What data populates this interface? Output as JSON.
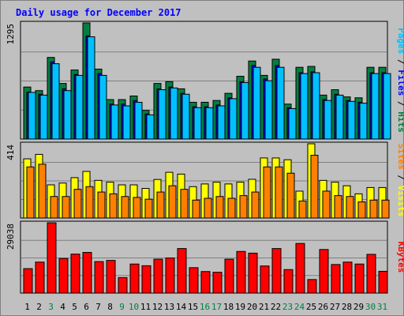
{
  "chart_data": {
    "type": "bar",
    "title": "Daily usage for December 2017",
    "categories": [
      "1",
      "2",
      "3",
      "4",
      "5",
      "6",
      "7",
      "8",
      "9",
      "10",
      "11",
      "12",
      "13",
      "14",
      "15",
      "16",
      "17",
      "18",
      "19",
      "20",
      "21",
      "22",
      "23",
      "24",
      "25",
      "26",
      "27",
      "28",
      "29",
      "30",
      "31"
    ],
    "weekend_days": [
      "3",
      "9",
      "10",
      "16",
      "17",
      "23",
      "24",
      "30",
      "31"
    ],
    "grid": true,
    "panels": [
      {
        "id": "hits-files-pages",
        "ylim": [
          0,
          1295
        ],
        "max_label": "1295",
        "axis_label": [
          {
            "text": "Pages",
            "color": "#00c0ff"
          },
          {
            "text": " / ",
            "color": "#000000"
          },
          {
            "text": "Files",
            "color": "#0000ff"
          },
          {
            "text": " / ",
            "color": "#000000"
          },
          {
            "text": "Hits",
            "color": "#008040"
          }
        ],
        "series": [
          {
            "name": "Hits",
            "color": "#008040",
            "values": [
              580,
              540,
              910,
              620,
              770,
              1295,
              780,
              440,
              440,
              480,
              320,
              620,
              640,
              560,
              410,
              410,
              430,
              510,
              700,
              870,
              710,
              890,
              390,
              800,
              810,
              490,
              550,
              470,
              460,
              800,
              800
            ]
          },
          {
            "name": "Files",
            "color": "#0000ff",
            "values": [
              525,
              500,
              860,
              560,
              720,
              1150,
              730,
              390,
              390,
              430,
              280,
              560,
              580,
              510,
              360,
              360,
              380,
              460,
              640,
              820,
              670,
              820,
              350,
              740,
              750,
              440,
              500,
              430,
              410,
              740,
              740
            ]
          },
          {
            "name": "Pages",
            "color": "#00c0ff",
            "values": [
              520,
              490,
              840,
              540,
              710,
              1140,
              710,
              380,
              370,
              410,
              270,
              550,
              570,
              500,
              350,
              350,
              370,
              450,
              630,
              800,
              650,
              800,
              340,
              730,
              740,
              430,
              490,
              420,
              400,
              730,
              730
            ]
          }
        ]
      },
      {
        "id": "visits-sites",
        "ylim": [
          0,
          414
        ],
        "max_label": "414",
        "axis_label": [
          {
            "text": "Sites",
            "color": "#ff8000"
          },
          {
            "text": " / ",
            "color": "#000000"
          },
          {
            "text": "Visits",
            "color": "#ffff00"
          }
        ],
        "series": [
          {
            "name": "Visits",
            "color": "#ffff00",
            "values": [
              330,
              355,
              185,
              195,
              225,
              260,
              210,
              200,
              185,
              185,
              165,
              215,
              255,
              245,
              175,
              190,
              200,
              190,
              200,
              216,
              335,
              335,
              325,
              150,
              414,
              210,
              200,
              180,
              135,
              170,
              170
            ]
          },
          {
            "name": "Sites",
            "color": "#ff8000",
            "values": [
              285,
              300,
              120,
              120,
              160,
              175,
              145,
              135,
              120,
              115,
              105,
              145,
              180,
              160,
              100,
              110,
              120,
              110,
              125,
              145,
              285,
              285,
              250,
              95,
              350,
              150,
              125,
              120,
              90,
              100,
              100
            ]
          }
        ]
      },
      {
        "id": "kbytes",
        "ylim": [
          0,
          29038
        ],
        "max_label": "29038",
        "axis_label": [
          {
            "text": "KBytes",
            "color": "#ff0000"
          }
        ],
        "series": [
          {
            "name": "KBytes",
            "color": "#ff0000",
            "values": [
              10100,
              12800,
              29038,
              14300,
              16100,
              16800,
              13000,
              13500,
              6400,
              12000,
              11300,
              14000,
              14500,
              18400,
              10500,
              8900,
              8600,
              14000,
              17200,
              16500,
              11200,
              18400,
              9700,
              20500,
              5600,
              18000,
              11800,
              12800,
              12000,
              16000,
              9000
            ]
          }
        ]
      }
    ]
  }
}
